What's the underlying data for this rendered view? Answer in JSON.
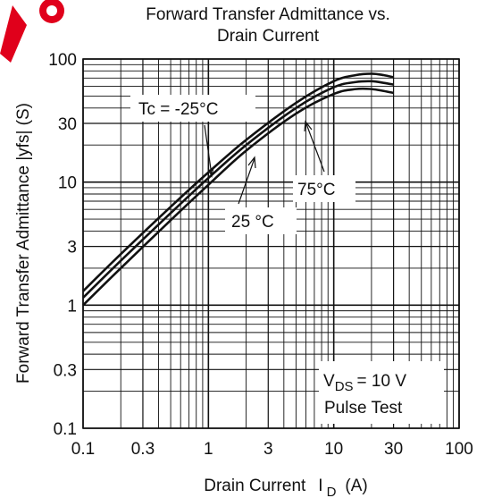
{
  "chart_data": {
    "type": "line",
    "title_lines": [
      "Forward Transfer Admittance vs.",
      "Drain Current"
    ],
    "xlabel": "Drain Current",
    "xlabel_symbol": "I",
    "xlabel_sub": "D",
    "xlabel_unit": "(A)",
    "ylabel": "Forward Transfer Admittance  |yfs|  (S)",
    "x_scale": "log",
    "y_scale": "log",
    "xlim": [
      0.1,
      100
    ],
    "ylim": [
      0.1,
      100
    ],
    "x_ticks": [
      {
        "value": 0.1,
        "label": "0.1"
      },
      {
        "value": 0.3,
        "label": "0.3"
      },
      {
        "value": 1,
        "label": "1"
      },
      {
        "value": 3,
        "label": "3"
      },
      {
        "value": 10,
        "label": "10"
      },
      {
        "value": 30,
        "label": "30"
      },
      {
        "value": 100,
        "label": "100"
      }
    ],
    "y_ticks": [
      {
        "value": 0.1,
        "label": "0.1"
      },
      {
        "value": 0.3,
        "label": "0.3"
      },
      {
        "value": 1,
        "label": "1"
      },
      {
        "value": 3,
        "label": "3"
      },
      {
        "value": 10,
        "label": "10"
      },
      {
        "value": 30,
        "label": "30"
      },
      {
        "value": 100,
        "label": "100"
      }
    ],
    "grid": true,
    "series": [
      {
        "name": "Tc = -25°C",
        "x": [
          0.1,
          0.2,
          0.5,
          1,
          2,
          5,
          10,
          15,
          20,
          25,
          30
        ],
        "y": [
          1.3,
          2.6,
          6.3,
          12,
          22,
          44,
          66,
          74,
          76,
          74,
          71
        ]
      },
      {
        "name": "25 °C",
        "x": [
          0.1,
          0.2,
          0.5,
          1,
          2,
          5,
          10,
          15,
          20,
          25,
          30
        ],
        "y": [
          1.15,
          2.3,
          5.6,
          10.8,
          20,
          40,
          59,
          65,
          66,
          64,
          62
        ]
      },
      {
        "name": "75°C",
        "x": [
          0.1,
          0.2,
          0.5,
          1,
          2,
          5,
          10,
          15,
          20,
          25,
          30
        ],
        "y": [
          1.0,
          2.0,
          4.9,
          9.5,
          18,
          36,
          52,
          57,
          57,
          55,
          53
        ]
      }
    ],
    "annotations": {
      "condition_vds": "V",
      "condition_vds_sub": "DS",
      "condition_vds_value": "= 10 V",
      "condition_pulse": "Pulse Test"
    },
    "colors": {
      "line": "#111111",
      "grid": "#111111",
      "background": "#ffffff",
      "watermark": "#e0001b"
    }
  }
}
